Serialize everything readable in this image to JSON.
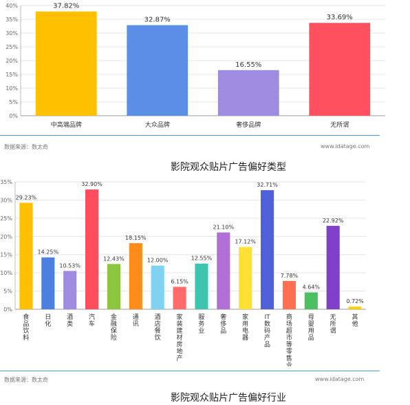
{
  "chart_data": [
    {
      "type": "bar",
      "title": "",
      "xlabel": "",
      "ylabel": "",
      "ylim": [
        0,
        40
      ],
      "yticks": [
        "0%",
        "5%",
        "10%",
        "15%",
        "20%",
        "25%",
        "30%",
        "35%",
        "40%"
      ],
      "grid": true,
      "categories": [
        "中高端品牌",
        "大众品牌",
        "奢侈品牌",
        "无所谓"
      ],
      "values": [
        37.82,
        32.87,
        16.55,
        33.69
      ],
      "labels": [
        "37.82%",
        "32.87%",
        "16.55%",
        "33.69%"
      ],
      "colors": [
        "#ffc000",
        "#5b8ee6",
        "#9d8ce0",
        "#ff5060"
      ]
    },
    {
      "type": "bar",
      "title": "",
      "xlabel": "",
      "ylabel": "",
      "ylim": [
        0,
        35
      ],
      "yticks": [
        "0%",
        "5%",
        "10%",
        "15%",
        "20%",
        "25%",
        "30%",
        "35%"
      ],
      "grid": true,
      "categories": [
        "食品饮料",
        "日化",
        "酒类",
        "汽车",
        "金融保险",
        "通讯",
        "酒店餐饮",
        "家装建材房地产",
        "服务业",
        "奢侈品",
        "家用电器",
        "IT数码产品",
        "商场超市等零售业",
        "母婴用品",
        "无所谓",
        "其他"
      ],
      "values": [
        29.23,
        14.25,
        10.53,
        32.9,
        12.43,
        18.15,
        12.0,
        6.15,
        12.55,
        21.1,
        17.12,
        32.71,
        7.78,
        4.64,
        22.92,
        0.72
      ],
      "labels": [
        "29.23%",
        "14.25%",
        "10.53%",
        "32.90%",
        "12.43%",
        "18.15%",
        "12.00%",
        "6.15%",
        "12.55%",
        "21.10%",
        "17.12%",
        "32.71%",
        "7.78%",
        "4.64%",
        "22.92%",
        "0.72%"
      ],
      "colors": [
        "#ffc000",
        "#4d7fe0",
        "#9d8ce0",
        "#ff4d5e",
        "#8cc63f",
        "#ff8c1a",
        "#7fd3f0",
        "#ff6b6b",
        "#3cc6b0",
        "#b070d8",
        "#ffe033",
        "#5060d8",
        "#ff7050",
        "#4cc060",
        "#8040c8",
        "#ffd000"
      ]
    }
  ],
  "source1": "数据来源：数太奇",
  "site1": "www.idatage.com",
  "caption1": "影院观众贴片广告偏好类型",
  "source2": "数据来源：数太奇",
  "site2": "www.idatage.com",
  "caption2": "影院观众贴片广告偏好行业"
}
